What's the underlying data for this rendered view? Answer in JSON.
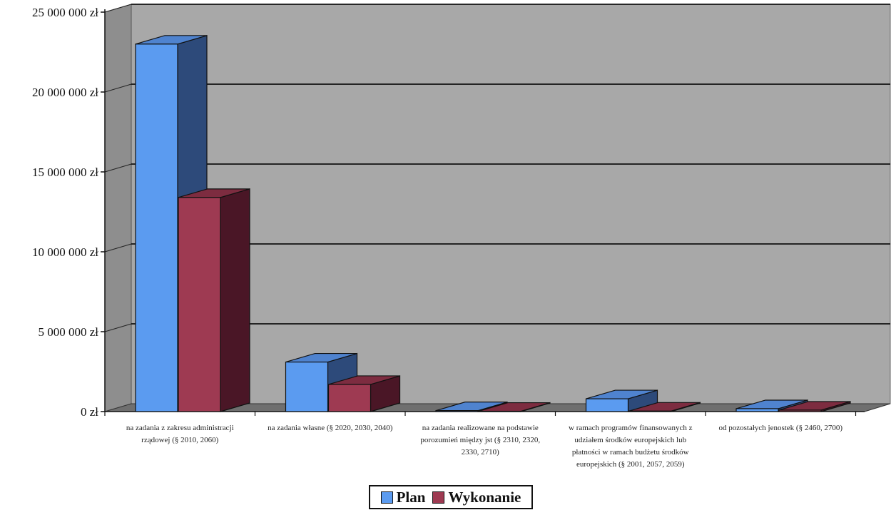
{
  "chart_data": {
    "type": "bar",
    "categories": [
      [
        "na zadania z zakresu administracji",
        "rządowej (§ 2010, 2060)"
      ],
      [
        "na zadania własne (§ 2020, 2030, 2040)"
      ],
      [
        "na zadania realizowane na podstawie",
        "porozumień między jst (§ 2310, 2320,",
        "2330, 2710)"
      ],
      [
        "w ramach programów finansowanych z",
        "udziałem środków europejskich lub",
        "płatności w ramach budżetu środków",
        "europejskich (§ 2001, 2057, 2059)"
      ],
      [
        "od pozostałych jenostek (§ 2460, 2700)"
      ]
    ],
    "series": [
      {
        "name": "Plan",
        "values": [
          23000000,
          3100000,
          60000,
          800000,
          180000
        ]
      },
      {
        "name": "Wykonanie",
        "values": [
          13400000,
          1700000,
          20000,
          30000,
          90000
        ]
      }
    ],
    "yticks": [
      "0 zł",
      "5 000 000 zł",
      "10 000 000 zł",
      "15 000 000 zł",
      "20 000 000 zł",
      "25 000 000 zł"
    ],
    "ylim": [
      0,
      25000000
    ],
    "grid": true,
    "legend_position": "bottom",
    "colors": {
      "plan_front": "#5b9bf0",
      "plan_side": "#2d4a7a",
      "plan_top": "#4f83cf",
      "wyk_front": "#9e3a52",
      "wyk_side": "#4a1626",
      "wyk_top": "#7d2c40",
      "wall": "#a8a8a8",
      "floor": "#6f6f6f"
    }
  },
  "legend": {
    "plan": "Plan",
    "wykonanie": "Wykonanie"
  }
}
